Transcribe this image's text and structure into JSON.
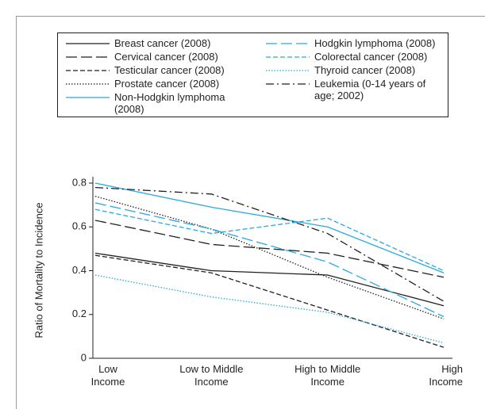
{
  "chart_data": {
    "type": "line",
    "y_label": "Ratio of Mortality to Incidence",
    "categories": [
      "Low Income",
      "Low to Middle Income",
      "High to Middle Income",
      "High Income"
    ],
    "ylim": [
      0,
      0.8
    ],
    "yticks": [
      0,
      0.2,
      0.4,
      0.6,
      0.8
    ],
    "series": [
      {
        "name": "Breast cancer (2008)",
        "color": "#231f20",
        "style": "solid",
        "values": [
          0.48,
          0.4,
          0.38,
          0.24
        ]
      },
      {
        "name": "Cervical cancer (2008)",
        "color": "#231f20",
        "style": "long-dash",
        "values": [
          0.63,
          0.52,
          0.48,
          0.37
        ]
      },
      {
        "name": "Testicular cancer (2008)",
        "color": "#231f20",
        "style": "dash",
        "values": [
          0.47,
          0.39,
          0.22,
          0.05
        ]
      },
      {
        "name": "Prostate cancer (2008)",
        "color": "#231f20",
        "style": "dot",
        "values": [
          0.74,
          0.59,
          0.37,
          0.18
        ]
      },
      {
        "name": "Non-Hodgkin lymphoma (2008)",
        "color": "#29a9e0",
        "style": "solid",
        "values": [
          0.8,
          0.69,
          0.6,
          0.39
        ]
      },
      {
        "name": "Hodgkin lymphoma (2008)",
        "color": "#29a9e0",
        "style": "long-dash",
        "values": [
          0.71,
          0.59,
          0.44,
          0.19
        ]
      },
      {
        "name": "Colorectal cancer (2008)",
        "color": "#29a9e0",
        "style": "dash",
        "values": [
          0.68,
          0.57,
          0.64,
          0.4
        ]
      },
      {
        "name": "Thyroid cancer (2008)",
        "color": "#29a9e0",
        "style": "dot",
        "values": [
          0.38,
          0.28,
          0.21,
          0.07
        ]
      },
      {
        "name": "Leukemia (0-14 years of age; 2002)",
        "color": "#231f20",
        "style": "dash-dot",
        "values": [
          0.78,
          0.75,
          0.57,
          0.26
        ]
      }
    ]
  }
}
